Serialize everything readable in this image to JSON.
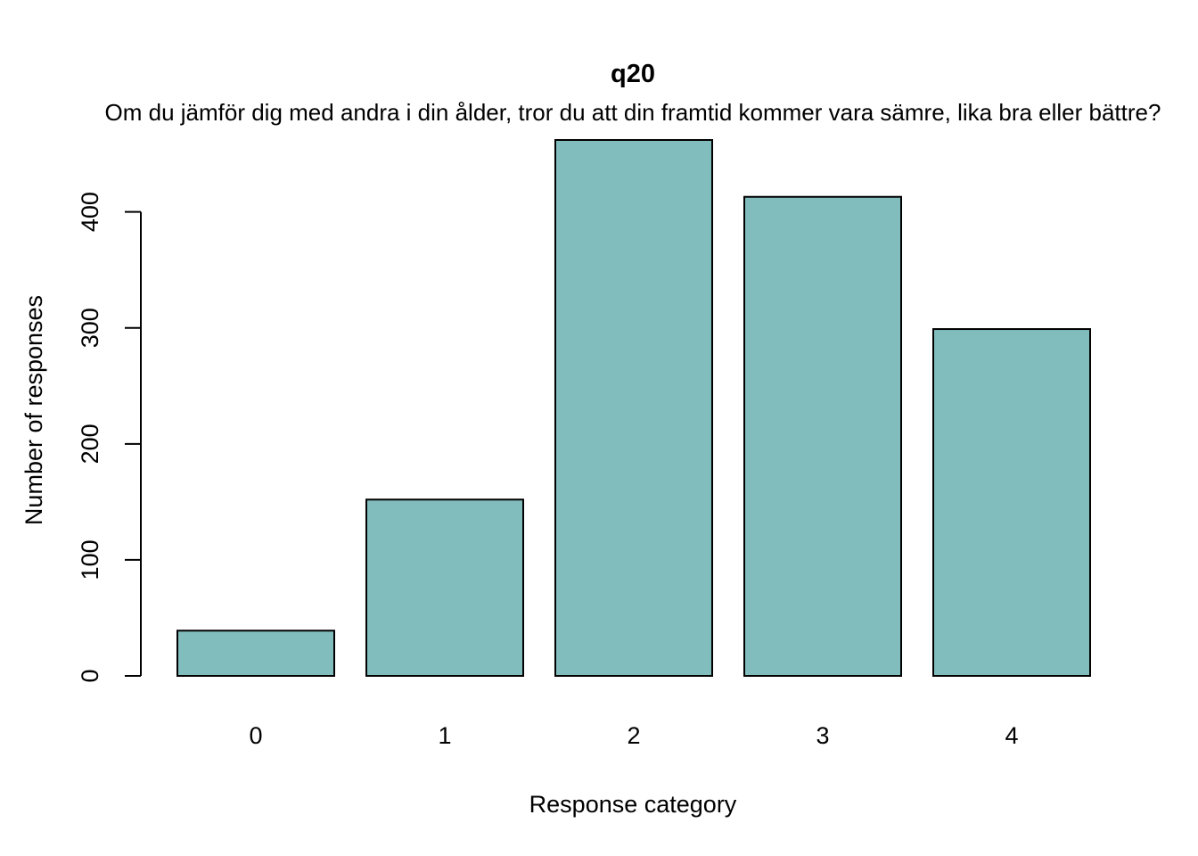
{
  "chart_data": {
    "type": "bar",
    "title": "q20",
    "subtitle": "Om du jämför dig med andra i din ålder, tror du att din framtid kommer vara sämre, lika bra eller bättre?",
    "xlabel": "Response category",
    "ylabel": "Number of responses",
    "categories": [
      "0",
      "1",
      "2",
      "3",
      "4"
    ],
    "values": [
      39,
      152,
      462,
      413,
      299
    ],
    "ylim": [
      0,
      462
    ],
    "yticks": [
      0,
      100,
      200,
      300,
      400
    ],
    "ytick_labels": [
      "0",
      "100",
      "200",
      "300",
      "400"
    ],
    "bar_color": "#80bdbc",
    "bar_stroke": "#000000",
    "grid": false,
    "legend": "none"
  }
}
